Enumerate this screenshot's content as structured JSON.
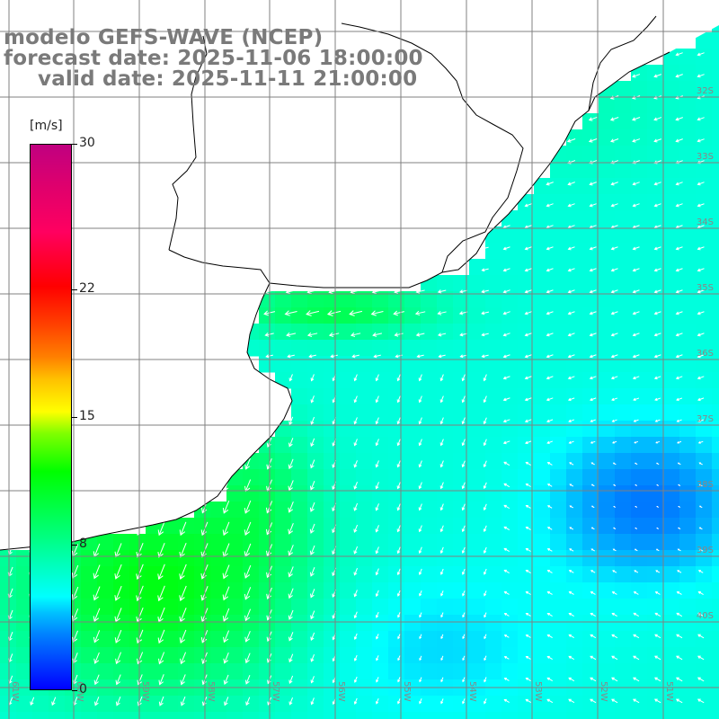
{
  "title": {
    "model": "modelo GEFS-WAVE (NCEP)",
    "forecast": "forecast date: 2025-11-06 18:00:00",
    "valid": "valid date: 2025-11-11 21:00:00"
  },
  "colorbar": {
    "units": "[m/s]",
    "min": 0,
    "max": 30,
    "ticks": [
      {
        "value": 30,
        "label": "30"
      },
      {
        "value": 22,
        "label": "22"
      },
      {
        "value": 15,
        "label": "15"
      },
      {
        "value": 8,
        "label": "8"
      },
      {
        "value": 0,
        "label": "0"
      }
    ]
  },
  "map": {
    "lon_labels": [
      "61W",
      "60W",
      "59W",
      "58W",
      "57W",
      "56W",
      "55W",
      "54W",
      "53W",
      "52W",
      "51W"
    ],
    "lat_labels": [
      "32S",
      "33S",
      "34S",
      "35S",
      "36S",
      "37S",
      "38S",
      "39S",
      "40S"
    ],
    "land_color": "#ffffff",
    "coast_color": "#000000",
    "grid_color": "#808080",
    "arrow_color": "#ffffff",
    "label_color": "#888888"
  }
}
